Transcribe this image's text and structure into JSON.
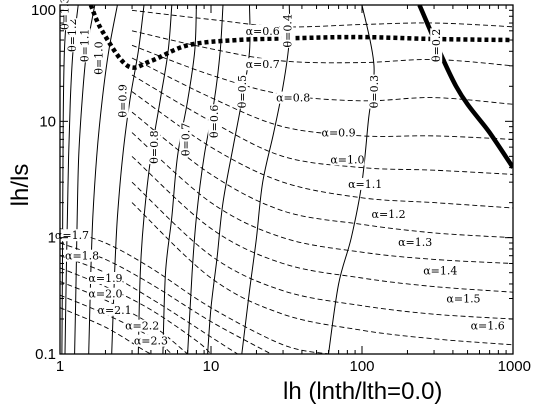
{
  "chart_data": {
    "type": "line",
    "xlabel": "lh   (lnth/lth=0.0)",
    "ylabel": "lh/ls",
    "x_scale": "log",
    "y_scale": "log",
    "xlim": [
      1,
      1000
    ],
    "ylim": [
      0.1,
      100
    ],
    "x_ticks": [
      1,
      10,
      100,
      1000
    ],
    "x_tick_labels": [
      "1",
      "10",
      "100",
      "1000"
    ],
    "y_ticks": [
      0.1,
      1,
      10,
      100
    ],
    "y_tick_labels": [
      "0.1",
      "1",
      "10",
      "100"
    ],
    "grid": false,
    "legend": "none",
    "series": [
      {
        "style": "solid",
        "label": "θ=0.2",
        "label_at": [
          310,
          45
        ],
        "points": [
          [
            240,
            100
          ],
          [
            420,
            20
          ],
          [
            700,
            8
          ],
          [
            1000,
            4
          ]
        ]
      },
      {
        "style": "solid",
        "label": "θ=0.3",
        "label_at": [
          120,
          18
        ],
        "points": [
          [
            100,
            100
          ],
          [
            120,
            30
          ],
          [
            110,
            10
          ],
          [
            100,
            3
          ],
          [
            85,
            1
          ],
          [
            70,
            0.4
          ],
          [
            60,
            0.1
          ]
        ]
      },
      {
        "style": "solid",
        "label": "θ=0.4",
        "label_at": [
          32,
          60
        ],
        "points": [
          [
            33,
            100
          ],
          [
            33,
            50
          ],
          [
            30,
            20
          ],
          [
            26,
            8
          ],
          [
            22,
            3
          ],
          [
            20,
            1
          ],
          [
            18,
            0.35
          ],
          [
            16,
            0.1
          ]
        ]
      },
      {
        "style": "solid",
        "label": "θ=0.5",
        "label_at": [
          16,
          18
        ],
        "points": [
          [
            18,
            100
          ],
          [
            18,
            40
          ],
          [
            16,
            15
          ],
          [
            14,
            6
          ],
          [
            12,
            2
          ],
          [
            11,
            0.7
          ],
          [
            10,
            0.25
          ],
          [
            9.5,
            0.1
          ]
        ]
      },
      {
        "style": "solid",
        "label": "θ=0.6",
        "label_at": [
          10.5,
          10
        ],
        "points": [
          [
            12,
            100
          ],
          [
            11.5,
            40
          ],
          [
            10.5,
            15
          ],
          [
            9,
            5
          ],
          [
            8,
            1.5
          ],
          [
            7.5,
            0.5
          ],
          [
            7,
            0.1
          ]
        ]
      },
      {
        "style": "solid",
        "label": "θ=0.7",
        "label_at": [
          6.8,
          7
        ],
        "points": [
          [
            8,
            100
          ],
          [
            7.8,
            40
          ],
          [
            7,
            15
          ],
          [
            6,
            5
          ],
          [
            5.5,
            1.5
          ],
          [
            5,
            0.5
          ],
          [
            4.8,
            0.1
          ]
        ]
      },
      {
        "style": "solid",
        "label": "θ=0.8",
        "label_at": [
          4.2,
          6
        ],
        "points": [
          [
            5.5,
            100
          ],
          [
            5.2,
            40
          ],
          [
            4.6,
            15
          ],
          [
            4,
            5
          ],
          [
            3.6,
            1.5
          ],
          [
            3.4,
            0.5
          ],
          [
            3.3,
            0.1
          ]
        ]
      },
      {
        "style": "solid",
        "label": "θ=0.9",
        "label_at": [
          2.6,
          15
        ],
        "points": [
          [
            3.6,
            100
          ],
          [
            3.3,
            40
          ],
          [
            2.9,
            15
          ],
          [
            2.6,
            5
          ],
          [
            2.4,
            1.5
          ],
          [
            2.3,
            0.5
          ],
          [
            2.2,
            0.1
          ]
        ]
      },
      {
        "style": "solid",
        "label": "θ=1.0",
        "label_at": [
          1.8,
          35
        ],
        "points": [
          [
            2.4,
            100
          ],
          [
            2.1,
            40
          ],
          [
            1.9,
            15
          ],
          [
            1.75,
            5
          ],
          [
            1.65,
            1.5
          ],
          [
            1.6,
            0.5
          ],
          [
            1.55,
            0.1
          ]
        ]
      },
      {
        "style": "solid",
        "label": "θ=1.1",
        "label_at": [
          1.45,
          45
        ],
        "points": [
          [
            1.7,
            100
          ],
          [
            1.5,
            40
          ],
          [
            1.4,
            15
          ],
          [
            1.33,
            5
          ],
          [
            1.3,
            1.5
          ],
          [
            1.28,
            0.5
          ],
          [
            1.25,
            0.1
          ]
        ]
      },
      {
        "style": "solid",
        "label": "θ=1.2",
        "label_at": [
          1.2,
          55
        ],
        "points": [
          [
            1.32,
            100
          ],
          [
            1.22,
            40
          ],
          [
            1.17,
            15
          ],
          [
            1.14,
            5
          ],
          [
            1.12,
            1.5
          ],
          [
            1.1,
            0.5
          ],
          [
            1.08,
            0.1
          ]
        ]
      },
      {
        "style": "solid",
        "label": "θ=1.3",
        "label_at": [
          1.07,
          85
        ],
        "points": [
          [
            1.12,
            100
          ],
          [
            1.07,
            40
          ],
          [
            1.05,
            10
          ],
          [
            1.04,
            1
          ],
          [
            1.03,
            0.1
          ]
        ]
      },
      {
        "style": "dashed",
        "label": "α=0.6",
        "label_at": [
          22,
          60
        ],
        "points": [
          [
            3,
            90
          ],
          [
            10,
            75
          ],
          [
            30,
            65
          ],
          [
            100,
            68
          ],
          [
            300,
            70
          ],
          [
            1000,
            65
          ]
        ]
      },
      {
        "style": "dashed",
        "label": "α=0.7",
        "label_at": [
          22,
          31
        ],
        "points": [
          [
            3,
            60
          ],
          [
            10,
            42
          ],
          [
            30,
            33
          ],
          [
            100,
            32
          ],
          [
            300,
            34
          ],
          [
            1000,
            30
          ]
        ]
      },
      {
        "style": "dashed",
        "label": "α=0.8",
        "label_at": [
          35,
          16
        ],
        "points": [
          [
            3,
            45
          ],
          [
            10,
            25
          ],
          [
            30,
            17
          ],
          [
            100,
            15
          ],
          [
            300,
            16
          ],
          [
            1000,
            14
          ]
        ]
      },
      {
        "style": "dashed",
        "label": "α=0.9",
        "label_at": [
          70,
          8
        ],
        "points": [
          [
            3,
            35
          ],
          [
            10,
            16
          ],
          [
            30,
            9
          ],
          [
            100,
            7.5
          ],
          [
            300,
            7.5
          ],
          [
            1000,
            7
          ]
        ]
      },
      {
        "style": "dashed",
        "label": "α=1.0",
        "label_at": [
          80,
          4.7
        ],
        "points": [
          [
            3,
            25
          ],
          [
            10,
            10
          ],
          [
            30,
            5
          ],
          [
            100,
            4
          ],
          [
            300,
            3.8
          ],
          [
            1000,
            3.5
          ]
        ]
      },
      {
        "style": "dashed",
        "label": "α=1.1",
        "label_at": [
          105,
          2.9
        ],
        "points": [
          [
            3,
            18
          ],
          [
            10,
            6
          ],
          [
            30,
            3
          ],
          [
            100,
            2.2
          ],
          [
            300,
            2
          ],
          [
            1000,
            1.8
          ]
        ]
      },
      {
        "style": "dashed",
        "label": "α=1.2",
        "label_at": [
          150,
          1.6
        ],
        "points": [
          [
            3,
            12
          ],
          [
            10,
            3.5
          ],
          [
            30,
            1.7
          ],
          [
            100,
            1.3
          ],
          [
            300,
            1.1
          ],
          [
            1000,
            1
          ]
        ]
      },
      {
        "style": "dashed",
        "label": "α=1.3",
        "label_at": [
          225,
          0.92
        ],
        "points": [
          [
            3,
            8
          ],
          [
            10,
            2
          ],
          [
            30,
            1
          ],
          [
            100,
            0.75
          ],
          [
            300,
            0.65
          ],
          [
            1000,
            0.6
          ]
        ]
      },
      {
        "style": "dashed",
        "label": "α=1.4",
        "label_at": [
          330,
          0.52
        ],
        "points": [
          [
            3,
            5
          ],
          [
            10,
            1.2
          ],
          [
            30,
            0.6
          ],
          [
            100,
            0.45
          ],
          [
            300,
            0.38
          ],
          [
            1000,
            0.34
          ]
        ]
      },
      {
        "style": "dashed",
        "label": "α=1.5",
        "label_at": [
          470,
          0.3
        ],
        "points": [
          [
            3,
            3
          ],
          [
            10,
            0.7
          ],
          [
            30,
            0.35
          ],
          [
            100,
            0.26
          ],
          [
            300,
            0.22
          ],
          [
            1000,
            0.2
          ]
        ]
      },
      {
        "style": "dashed",
        "label": "α=1.6",
        "label_at": [
          680,
          0.175
        ],
        "points": [
          [
            3,
            2
          ],
          [
            10,
            0.45
          ],
          [
            30,
            0.22
          ],
          [
            100,
            0.16
          ],
          [
            300,
            0.135
          ],
          [
            1000,
            0.12
          ]
        ]
      },
      {
        "style": "dashed",
        "label": "α=1.7",
        "label_at": [
          1.2,
          1.05
        ],
        "points": [
          [
            1,
            1.2
          ],
          [
            2,
            0.9
          ],
          [
            4,
            0.55
          ],
          [
            10,
            0.25
          ],
          [
            30,
            0.12
          ],
          [
            60,
            0.1
          ]
        ]
      },
      {
        "style": "dashed",
        "label": "α=1.8",
        "label_at": [
          1.4,
          0.7
        ],
        "points": [
          [
            1,
            0.9
          ],
          [
            2,
            0.65
          ],
          [
            4,
            0.4
          ],
          [
            10,
            0.19
          ],
          [
            25,
            0.1
          ]
        ]
      },
      {
        "style": "dashed",
        "label": "α=1.9",
        "label_at": [
          2.0,
          0.45
        ],
        "points": [
          [
            1,
            0.7
          ],
          [
            2,
            0.5
          ],
          [
            4,
            0.3
          ],
          [
            10,
            0.14
          ],
          [
            15,
            0.1
          ]
        ]
      },
      {
        "style": "dashed",
        "label": "α=2.0",
        "label_at": [
          2.0,
          0.33
        ],
        "points": [
          [
            1,
            0.55
          ],
          [
            2,
            0.38
          ],
          [
            4,
            0.24
          ],
          [
            8,
            0.13
          ],
          [
            10,
            0.1
          ]
        ]
      },
      {
        "style": "dashed",
        "label": "α=2.1",
        "label_at": [
          2.3,
          0.24
        ],
        "points": [
          [
            1,
            0.42
          ],
          [
            2,
            0.29
          ],
          [
            4,
            0.18
          ],
          [
            7,
            0.1
          ]
        ]
      },
      {
        "style": "dashed",
        "label": "α=2.2",
        "label_at": [
          3.5,
          0.175
        ],
        "points": [
          [
            1,
            0.32
          ],
          [
            2,
            0.22
          ],
          [
            4,
            0.14
          ],
          [
            5.5,
            0.1
          ]
        ]
      },
      {
        "style": "dashed",
        "label": "α=2.3",
        "label_at": [
          4.0,
          0.13
        ],
        "points": [
          [
            1,
            0.25
          ],
          [
            2,
            0.17
          ],
          [
            3.5,
            0.11
          ],
          [
            4,
            0.1
          ]
        ]
      },
      {
        "style": "dotted-bold",
        "points": [
          [
            1.6,
            100
          ],
          [
            1.9,
            60
          ],
          [
            2.8,
            30
          ],
          [
            4,
            33
          ],
          [
            7,
            45
          ],
          [
            15,
            50
          ],
          [
            40,
            52
          ],
          [
            100,
            53
          ],
          [
            300,
            51
          ],
          [
            1000,
            50
          ]
        ]
      }
    ]
  }
}
